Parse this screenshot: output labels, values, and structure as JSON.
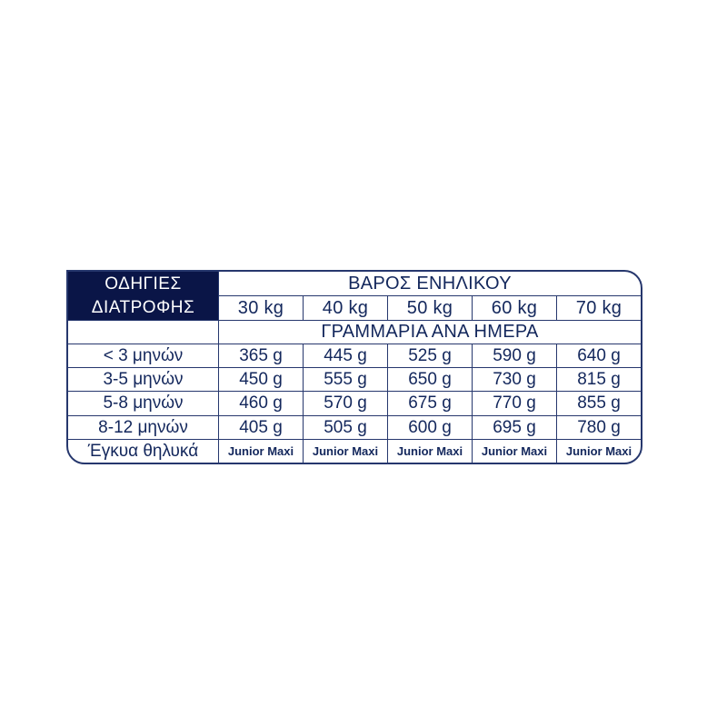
{
  "colors": {
    "navy_box": "#0a1547",
    "navy_text": "#13275c",
    "border": "#26376d",
    "background": "#ffffff"
  },
  "table": {
    "corner_header": {
      "line1": "ΟΔΗΓΙΕΣ",
      "line2": "ΔΙΑΤΡΟΦΗΣ"
    },
    "weight_header": "ΒΑΡΟΣ ΕΝΗΛΙΚΟΥ",
    "weight_columns": [
      "30 kg",
      "40 kg",
      "50 kg",
      "60 kg",
      "70 kg"
    ],
    "grams_header": "ΓΡΑΜΜΑΡΙΑ ΑΝΑ ΗΜΕΡΑ",
    "rows": [
      {
        "label": "< 3 μηνών",
        "values": [
          "365 g",
          "445 g",
          "525 g",
          "590 g",
          "640 g"
        ]
      },
      {
        "label": "3-5 μηνών",
        "values": [
          "450 g",
          "555 g",
          "650 g",
          "730 g",
          "815 g"
        ]
      },
      {
        "label": "5-8 μηνών",
        "values": [
          "460 g",
          "570 g",
          "675 g",
          "770 g",
          "855 g"
        ]
      },
      {
        "label": "8-12 μηνών",
        "values": [
          "405 g",
          "505 g",
          "600 g",
          "695 g",
          "780 g"
        ]
      },
      {
        "label": "Έγκυα θηλυκά",
        "values": [
          "Junior Maxi",
          "Junior Maxi",
          "Junior Maxi",
          "Junior Maxi",
          "Junior Maxi"
        ]
      }
    ]
  }
}
